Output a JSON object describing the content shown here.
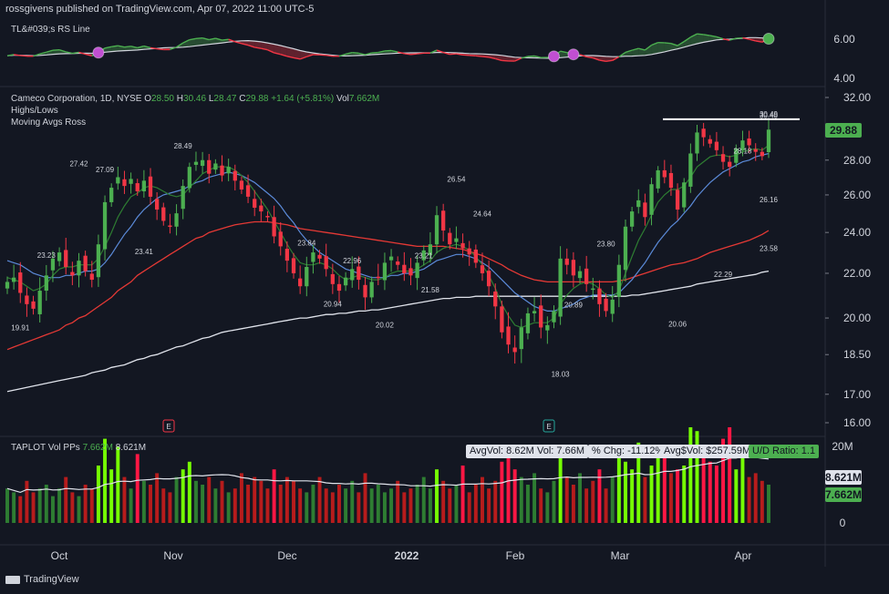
{
  "header": "rossgivens published on TradingView.com, Apr 07, 2022 11:00 UTC-5",
  "footer": "TradingView",
  "rs_pane": {
    "legend": "TL&#039;s RS Line",
    "ticks": [
      "6.00",
      "4.00"
    ]
  },
  "price_pane": {
    "legend_symbol": "Cameco Corporation, 1D, NYSE",
    "ohlc": {
      "o_label": "O",
      "o": "28.50",
      "h_label": "H",
      "h": "30.46",
      "l_label": "L",
      "l": "28.47",
      "c_label": "C",
      "c": "29.88",
      "chg": "+1.64 (+5.81%)",
      "vol_label": "Vol",
      "vol": "7.662M"
    },
    "legend_line2": "Highs/Lows",
    "legend_line3": "Moving Avgs Ross",
    "last_price": "29.88",
    "ticks": [
      "32.00",
      "28.00",
      "26.00",
      "24.00",
      "22.00",
      "20.00",
      "18.50",
      "17.00",
      "16.00"
    ]
  },
  "volume_pane": {
    "legend": "TAPLOT Vol PPs",
    "legend_vol": "7.662M",
    "legend_avg": "8.621M",
    "stats": {
      "avg_vol": "AvgVol: 8.62M",
      "vol": "Vol: 7.66M",
      "pct_chg": "% Chg: -11.12%",
      "avg_dollar_vol": "Avg$Vol: $257.59M",
      "ud_ratio": "U/D Ratio: 1.1"
    },
    "ticks": [
      "20M",
      "0"
    ],
    "avg_tag": "8.621M",
    "vol_tag": "7.662M"
  },
  "x_labels": [
    "Oct",
    "Nov",
    "Dec",
    "2022",
    "Feb",
    "Mar",
    "Apr"
  ],
  "earnings_markers": [
    "E",
    "E"
  ],
  "chart_data": {
    "type": "candlestick",
    "annotations": [
      {
        "text": "19.91",
        "x": "Sep 30",
        "y": 19.91
      },
      {
        "text": "23.23",
        "x": "Oct 06",
        "y": 23.23
      },
      {
        "text": "27.42",
        "x": "Oct 13",
        "y": 27.42
      },
      {
        "text": "27.09",
        "x": "Oct 18",
        "y": 27.09
      },
      {
        "text": "23.41",
        "x": "Oct 27",
        "y": 23.41
      },
      {
        "text": "28.49",
        "x": "Nov 05",
        "y": 28.49
      },
      {
        "text": "23.84",
        "x": "Dec 03",
        "y": 23.84
      },
      {
        "text": "20.94",
        "x": "Dec 08",
        "y": 20.94
      },
      {
        "text": "22.96",
        "x": "Dec 13",
        "y": 22.96
      },
      {
        "text": "20.02",
        "x": "Dec 20",
        "y": 20.02
      },
      {
        "text": "23.21",
        "x": "Dec 28",
        "y": 23.21
      },
      {
        "text": "21.58",
        "x": "Dec 30",
        "y": 21.58
      },
      {
        "text": "26.54",
        "x": "Jan 06",
        "y": 26.54
      },
      {
        "text": "24.64",
        "x": "Jan 12",
        "y": 24.64
      },
      {
        "text": "18.03",
        "x": "Jan 28",
        "y": 18.03
      },
      {
        "text": "20.89",
        "x": "Feb 02",
        "y": 20.89
      },
      {
        "text": "23.80",
        "x": "Feb 09",
        "y": 23.8
      },
      {
        "text": "20.06",
        "x": "Feb 24",
        "y": 20.06
      },
      {
        "text": "22.29",
        "x": "Mar 04",
        "y": 22.29
      },
      {
        "text": "28.18",
        "x": "Mar 08",
        "y": 28.18
      },
      {
        "text": "23.58",
        "x": "Mar 15",
        "y": 23.58
      },
      {
        "text": "30.49",
        "x": "Mar 17",
        "y": 30.49
      },
      {
        "text": "26.16",
        "x": "Mar 29",
        "y": 26.16
      },
      {
        "text": "30.40",
        "x": "Mar 31",
        "y": 30.4
      }
    ],
    "last_close": 29.88,
    "closes": [
      21.6,
      21.8,
      21.1,
      20.6,
      20.4,
      21.2,
      21.9,
      22.7,
      23.0,
      22.3,
      21.9,
      22.6,
      22.1,
      21.7,
      23.4,
      25.6,
      26.4,
      27.0,
      26.5,
      26.9,
      26.2,
      26.8,
      25.9,
      25.2,
      24.6,
      24.3,
      25.0,
      26.5,
      27.6,
      27.9,
      28.0,
      27.2,
      27.8,
      27.1,
      27.6,
      26.8,
      26.3,
      25.9,
      25.3,
      25.1,
      24.8,
      23.8,
      23.3,
      22.6,
      22.0,
      21.4,
      22.3,
      23.0,
      22.7,
      22.2,
      21.5,
      21.2,
      21.8,
      22.2,
      21.7,
      20.9,
      21.6,
      21.8,
      22.5,
      22.8,
      22.4,
      22.0,
      21.9,
      22.5,
      23.1,
      23.4,
      24.9,
      24.1,
      23.4,
      23.7,
      23.2,
      22.9,
      22.5,
      22.0,
      21.4,
      20.5,
      19.4,
      18.9,
      18.6,
      19.6,
      20.2,
      20.3,
      19.6,
      19.7,
      20.3,
      22.7,
      22.4,
      21.9,
      22.1,
      21.5,
      21.3,
      20.6,
      20.3,
      20.8,
      22.4,
      24.3,
      25.1,
      25.7,
      24.8,
      26.6,
      27.4,
      27.0,
      26.4,
      25.2,
      26.7,
      28.4,
      29.7,
      29.4,
      29.0,
      28.6,
      27.9,
      27.6,
      28.7,
      29.2,
      28.9,
      28.5,
      28.24,
      29.88
    ],
    "sma_short": [
      21.8,
      21.7,
      21.6,
      21.4,
      21.2,
      21.3,
      21.5,
      21.9,
      22.2,
      22.3,
      22.3,
      22.4,
      22.4,
      22.4,
      22.7,
      23.3,
      24.0,
      24.8,
      25.4,
      25.9,
      26.1,
      26.4,
      26.5,
      26.4,
      26.2,
      26.0,
      25.9,
      26.0,
      26.4,
      26.8,
      27.2,
      27.4,
      27.6,
      27.6,
      27.6,
      27.4,
      27.1,
      26.7,
      26.2,
      25.7,
      25.2,
      24.6,
      24.0,
      23.4,
      22.9,
      22.5,
      22.4,
      22.4,
      22.5,
      22.4,
      22.2,
      21.9,
      21.7,
      21.8,
      21.9,
      21.8,
      21.7,
      21.7,
      21.8,
      22.0,
      22.1,
      22.1,
      22.1,
      22.2,
      22.4,
      22.6,
      23.0,
      23.2,
      23.3,
      23.4,
      23.3,
      23.1,
      22.8,
      22.4,
      21.9,
      21.3,
      20.6,
      20.1,
      19.7,
      19.6,
      19.7,
      19.8,
      19.8,
      19.8,
      20.0,
      20.6,
      21.0,
      21.3,
      21.5,
      21.6,
      21.5,
      21.3,
      21.0,
      20.9,
      21.2,
      22.0,
      22.8,
      23.6,
      24.2,
      24.9,
      25.6,
      26.0,
      26.3,
      26.3,
      26.5,
      27.0,
      27.6,
      27.9,
      28.2,
      28.3,
      28.3,
      28.2,
      28.3,
      28.5,
      28.6,
      28.7,
      28.6,
      28.9
    ],
    "sma_medium": [
      22.6,
      22.5,
      22.4,
      22.2,
      22.0,
      21.9,
      21.8,
      21.8,
      21.8,
      21.9,
      21.9,
      22.0,
      22.1,
      22.1,
      22.2,
      22.5,
      22.9,
      23.4,
      23.9,
      24.3,
      24.8,
      25.2,
      25.5,
      25.8,
      26.0,
      26.1,
      26.2,
      26.3,
      26.5,
      26.7,
      26.8,
      27.0,
      27.1,
      27.2,
      27.3,
      27.2,
      27.1,
      26.9,
      26.7,
      26.4,
      26.1,
      25.8,
      25.4,
      24.9,
      24.5,
      24.0,
      23.6,
      23.3,
      23.0,
      22.8,
      22.6,
      22.4,
      22.2,
      22.1,
      22.0,
      21.9,
      21.8,
      21.8,
      21.8,
      21.9,
      21.9,
      22.0,
      22.0,
      22.1,
      22.2,
      22.4,
      22.6,
      22.7,
      22.8,
      22.9,
      22.9,
      22.8,
      22.7,
      22.5,
      22.3,
      22.0,
      21.7,
      21.4,
      21.1,
      20.9,
      20.7,
      20.5,
      20.4,
      20.3,
      20.3,
      20.4,
      20.5,
      20.6,
      20.8,
      20.9,
      21.0,
      21.0,
      21.0,
      21.0,
      21.1,
      21.4,
      21.7,
      22.1,
      22.5,
      23.0,
      23.5,
      23.9,
      24.3,
      24.6,
      25.0,
      25.4,
      25.9,
      26.3,
      26.7,
      27.0,
      27.3,
      27.5,
      27.7,
      27.9,
      28.0,
      28.2,
      28.3,
      28.4
    ],
    "sma_50": [
      18.7,
      18.8,
      18.9,
      19.0,
      19.1,
      19.2,
      19.3,
      19.4,
      19.5,
      19.7,
      19.8,
      20.0,
      20.1,
      20.3,
      20.5,
      20.7,
      20.9,
      21.2,
      21.4,
      21.6,
      21.9,
      22.1,
      22.3,
      22.5,
      22.7,
      22.9,
      23.1,
      23.3,
      23.5,
      23.7,
      23.8,
      24.0,
      24.1,
      24.2,
      24.3,
      24.4,
      24.45,
      24.5,
      24.55,
      24.55,
      24.55,
      24.5,
      24.45,
      24.4,
      24.3,
      24.2,
      24.15,
      24.1,
      24.05,
      24.0,
      23.95,
      23.9,
      23.85,
      23.8,
      23.75,
      23.7,
      23.65,
      23.6,
      23.55,
      23.5,
      23.45,
      23.4,
      23.35,
      23.3,
      23.3,
      23.3,
      23.3,
      23.3,
      23.25,
      23.2,
      23.15,
      23.05,
      22.95,
      22.85,
      22.7,
      22.55,
      22.4,
      22.2,
      22.05,
      21.9,
      21.8,
      21.7,
      21.65,
      21.6,
      21.6,
      21.6,
      21.6,
      21.6,
      21.6,
      21.6,
      21.6,
      21.6,
      21.6,
      21.6,
      21.65,
      21.7,
      21.8,
      21.9,
      22.0,
      22.1,
      22.2,
      22.3,
      22.4,
      22.45,
      22.5,
      22.6,
      22.7,
      22.85,
      23.0,
      23.1,
      23.2,
      23.3,
      23.4,
      23.5,
      23.6,
      23.75,
      23.9,
      24.1
    ],
    "sma_200": [
      17.1,
      17.15,
      17.2,
      17.25,
      17.3,
      17.35,
      17.4,
      17.45,
      17.5,
      17.55,
      17.6,
      17.65,
      17.7,
      17.8,
      17.85,
      17.9,
      18.0,
      18.05,
      18.1,
      18.2,
      18.3,
      18.35,
      18.45,
      18.5,
      18.6,
      18.7,
      18.8,
      18.85,
      18.95,
      19.05,
      19.15,
      19.2,
      19.3,
      19.4,
      19.45,
      19.5,
      19.55,
      19.6,
      19.65,
      19.7,
      19.75,
      19.8,
      19.85,
      19.9,
      19.95,
      20.0,
      20.0,
      20.05,
      20.1,
      20.15,
      20.15,
      20.2,
      20.2,
      20.25,
      20.3,
      20.3,
      20.35,
      20.35,
      20.4,
      20.45,
      20.5,
      20.55,
      20.6,
      20.65,
      20.7,
      20.75,
      20.8,
      20.85,
      20.85,
      20.9,
      20.9,
      20.9,
      20.95,
      20.95,
      20.95,
      20.95,
      20.95,
      20.95,
      20.95,
      20.95,
      20.95,
      20.95,
      20.95,
      20.95,
      20.95,
      20.95,
      20.95,
      20.95,
      20.95,
      20.95,
      20.95,
      20.95,
      20.95,
      20.95,
      20.95,
      20.95,
      21.0,
      21.0,
      21.05,
      21.1,
      21.15,
      21.2,
      21.25,
      21.3,
      21.35,
      21.4,
      21.5,
      21.55,
      21.6,
      21.65,
      21.7,
      21.75,
      21.8,
      21.85,
      21.9,
      21.95,
      22.05,
      22.1
    ],
    "volumes": [
      9,
      8,
      7,
      11,
      8,
      9,
      10,
      7,
      9,
      12,
      8,
      7,
      10,
      9,
      15,
      22,
      14,
      20,
      12,
      9,
      18,
      11,
      10,
      13,
      9,
      8,
      12,
      14,
      16,
      11,
      10,
      12,
      9,
      11,
      8,
      9,
      13,
      10,
      12,
      11,
      9,
      14,
      10,
      12,
      11,
      9,
      8,
      10,
      12,
      9,
      8,
      10,
      9,
      11,
      8,
      13,
      9,
      10,
      8,
      9,
      11,
      8,
      9,
      10,
      12,
      9,
      14,
      11,
      9,
      10,
      15,
      8,
      10,
      12,
      9,
      11,
      16,
      20,
      14,
      12,
      10,
      13,
      9,
      8,
      11,
      18,
      12,
      10,
      13,
      9,
      11,
      14,
      9,
      12,
      17,
      16,
      14,
      21,
      12,
      15,
      20,
      19,
      13,
      14,
      15,
      25,
      24,
      18,
      16,
      15,
      22,
      25,
      14,
      17,
      12,
      13,
      11,
      10
    ]
  }
}
